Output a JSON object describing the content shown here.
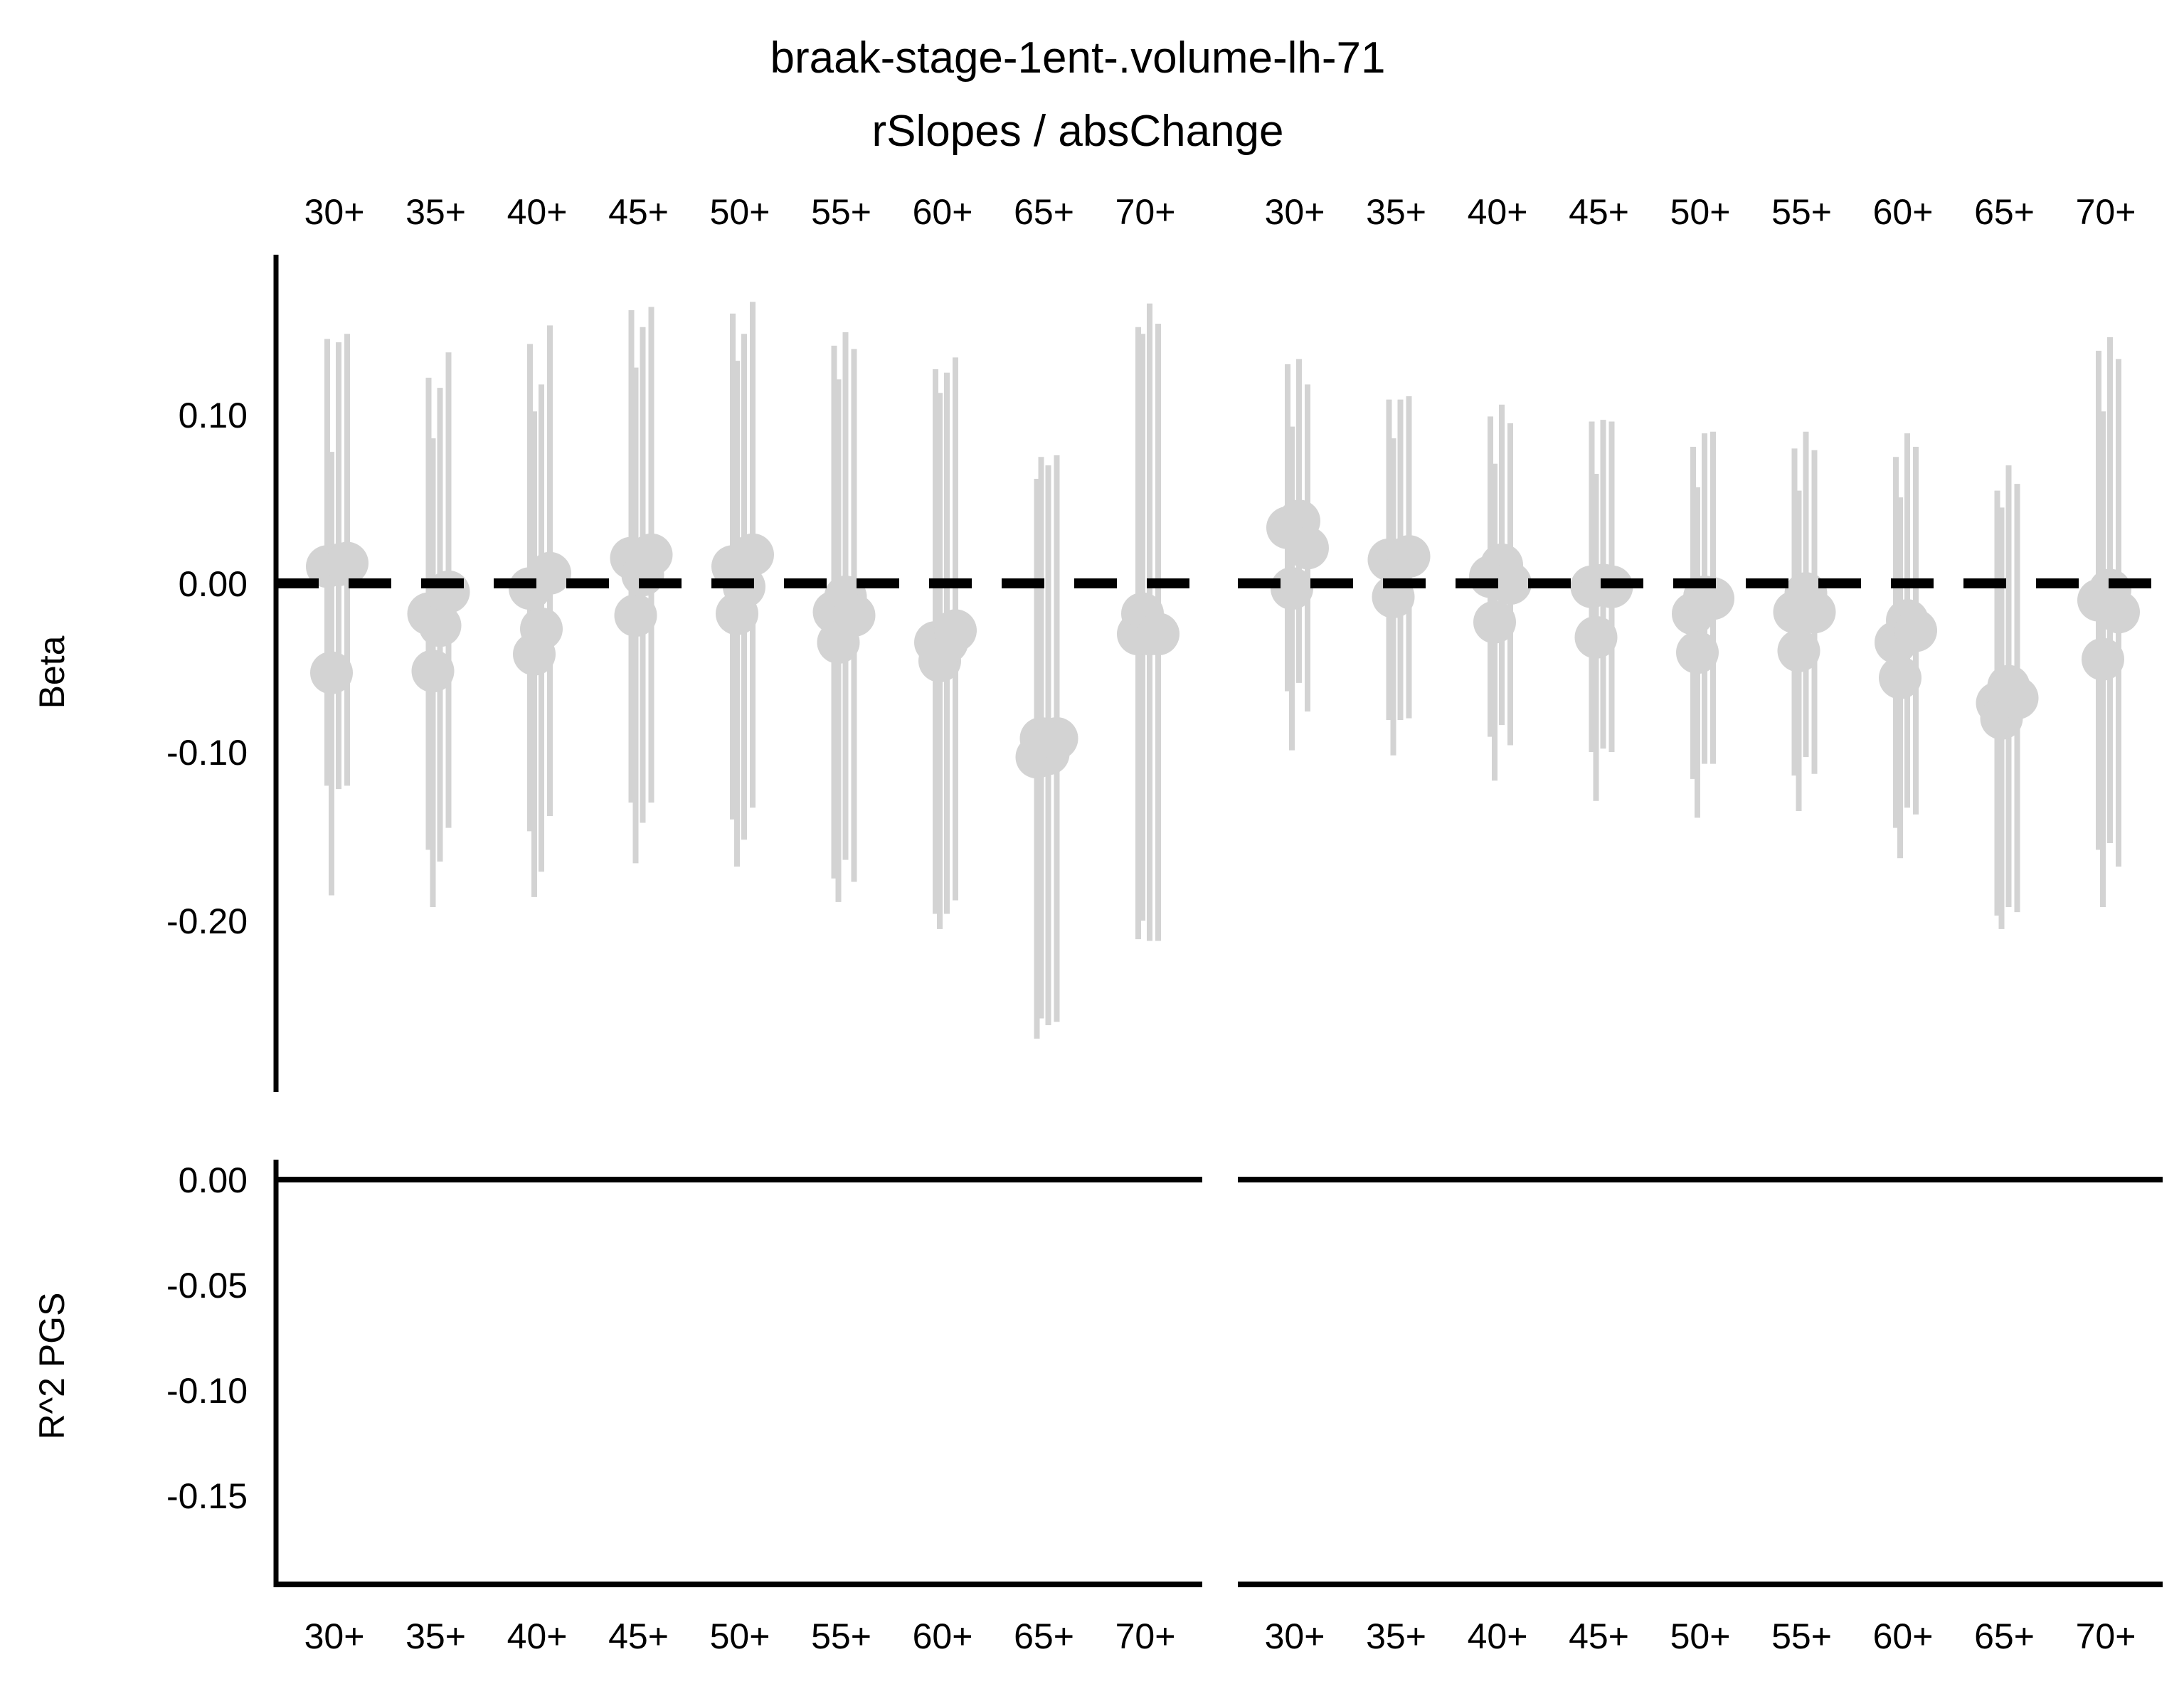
{
  "chart_data": {
    "type": "scatter",
    "title": "braak-stage-1ent-.volume-lh-71",
    "subtitle": "rSlopes / absChange",
    "facet_labels": [
      "30+",
      "35+",
      "40+",
      "45+",
      "50+",
      "55+",
      "60+",
      "65+",
      "70+"
    ],
    "facet_groups": 2,
    "point_color": "#d3d3d3",
    "reference_line": {
      "y": 0,
      "style": "dashed",
      "color": "#000000"
    },
    "top_panel": {
      "ylabel": "Beta",
      "yticks": [
        0.1,
        0.0,
        -0.1,
        -0.2
      ],
      "ytick_labels": [
        "0.10",
        "0.00",
        "-0.10",
        "-0.20"
      ],
      "ylim": [
        -0.295,
        0.19
      ],
      "groups": [
        [
          [
            [
              0.01,
              -0.12,
              0.145
            ],
            [
              -0.053,
              -0.185,
              0.078
            ],
            [
              0.011,
              -0.122,
              0.143
            ],
            [
              0.012,
              -0.12,
              0.148
            ]
          ],
          [
            [
              -0.018,
              -0.158,
              0.122
            ],
            [
              -0.052,
              -0.192,
              0.086
            ],
            [
              -0.025,
              -0.165,
              0.116
            ],
            [
              -0.005,
              -0.145,
              0.137
            ]
          ],
          [
            [
              -0.003,
              -0.147,
              0.142
            ],
            [
              -0.042,
              -0.186,
              0.102
            ],
            [
              -0.027,
              -0.171,
              0.118
            ],
            [
              0.006,
              -0.138,
              0.153
            ]
          ],
          [
            [
              0.015,
              -0.13,
              0.162
            ],
            [
              -0.019,
              -0.166,
              0.128
            ],
            [
              0.005,
              -0.142,
              0.152
            ],
            [
              0.017,
              -0.13,
              0.164
            ]
          ],
          [
            [
              0.01,
              -0.14,
              0.16
            ],
            [
              -0.018,
              -0.168,
              0.132
            ],
            [
              -0.002,
              -0.152,
              0.148
            ],
            [
              0.017,
              -0.133,
              0.167
            ]
          ],
          [
            [
              -0.017,
              -0.175,
              0.141
            ],
            [
              -0.035,
              -0.189,
              0.121
            ],
            [
              -0.008,
              -0.164,
              0.149
            ],
            [
              -0.019,
              -0.177,
              0.139
            ]
          ],
          [
            [
              -0.035,
              -0.196,
              0.127
            ],
            [
              -0.046,
              -0.205,
              0.113
            ],
            [
              -0.035,
              -0.196,
              0.125
            ],
            [
              -0.028,
              -0.188,
              0.134
            ]
          ],
          [
            [
              -0.103,
              -0.27,
              0.062
            ],
            [
              -0.092,
              -0.258,
              0.075
            ],
            [
              -0.101,
              -0.262,
              0.07
            ],
            [
              -0.092,
              -0.26,
              0.076
            ]
          ],
          [
            [
              -0.03,
              -0.211,
              0.152
            ],
            [
              -0.018,
              -0.2,
              0.148
            ],
            [
              -0.03,
              -0.212,
              0.166
            ],
            [
              -0.03,
              -0.212,
              0.154
            ]
          ]
        ],
        [
          [
            [
              0.033,
              -0.064,
              0.13
            ],
            [
              -0.003,
              -0.099,
              0.093
            ],
            [
              0.037,
              -0.059,
              0.133
            ],
            [
              0.021,
              -0.076,
              0.118
            ]
          ],
          [
            [
              0.014,
              -0.081,
              0.109
            ],
            [
              -0.008,
              -0.102,
              0.086
            ],
            [
              0.014,
              -0.081,
              0.109
            ],
            [
              0.016,
              -0.08,
              0.111
            ]
          ],
          [
            [
              0.004,
              -0.091,
              0.099
            ],
            [
              -0.023,
              -0.117,
              0.071
            ],
            [
              0.011,
              -0.084,
              0.106
            ],
            [
              0.0,
              -0.096,
              0.095
            ]
          ],
          [
            [
              -0.002,
              -0.1,
              0.096
            ],
            [
              -0.032,
              -0.129,
              0.065
            ],
            [
              -0.001,
              -0.098,
              0.097
            ],
            [
              -0.002,
              -0.1,
              0.096
            ]
          ],
          [
            [
              -0.018,
              -0.116,
              0.081
            ],
            [
              -0.041,
              -0.139,
              0.057
            ],
            [
              -0.008,
              -0.107,
              0.089
            ],
            [
              -0.009,
              -0.107,
              0.09
            ]
          ],
          [
            [
              -0.017,
              -0.114,
              0.08
            ],
            [
              -0.04,
              -0.135,
              0.055
            ],
            [
              -0.006,
              -0.103,
              0.09
            ],
            [
              -0.017,
              -0.113,
              0.079
            ]
          ],
          [
            [
              -0.035,
              -0.145,
              0.075
            ],
            [
              -0.056,
              -0.163,
              0.051
            ],
            [
              -0.022,
              -0.133,
              0.089
            ],
            [
              -0.028,
              -0.137,
              0.081
            ]
          ],
          [
            [
              -0.071,
              -0.197,
              0.055
            ],
            [
              -0.08,
              -0.205,
              0.045
            ],
            [
              -0.061,
              -0.192,
              0.07
            ],
            [
              -0.068,
              -0.195,
              0.059
            ]
          ],
          [
            [
              -0.01,
              -0.158,
              0.138
            ],
            [
              -0.045,
              -0.192,
              0.102
            ],
            [
              -0.004,
              -0.154,
              0.146
            ],
            [
              -0.017,
              -0.168,
              0.133
            ]
          ]
        ]
      ]
    },
    "bottom_panel": {
      "ylabel": "R^2 PGS",
      "yticks": [
        0.0,
        -0.05,
        -0.1,
        -0.15
      ],
      "ytick_labels": [
        "0.00",
        "-0.05",
        "-0.10",
        "-0.15"
      ],
      "ylim": [
        -0.195,
        0.01
      ],
      "values": [
        0,
        0
      ]
    }
  }
}
